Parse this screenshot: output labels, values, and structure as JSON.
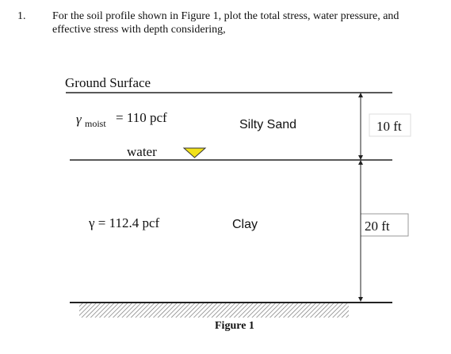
{
  "question": {
    "number": "1.",
    "lines": [
      "For the soil profile shown in Figure 1, plot the total stress, water pressure, and",
      "effective stress with depth considering,"
    ]
  },
  "figure": {
    "ground_surface": "Ground Surface",
    "layer1": {
      "gamma": "γ",
      "subscript": "moist",
      "value": "= 110 pcf",
      "soil": "Silty  Sand",
      "thickness": "10 ft"
    },
    "water": "water",
    "layer2": {
      "gamma": "γ = 112.4 pcf",
      "soil": "Clay",
      "thickness": "20  ft"
    },
    "caption": "Figure 1"
  }
}
